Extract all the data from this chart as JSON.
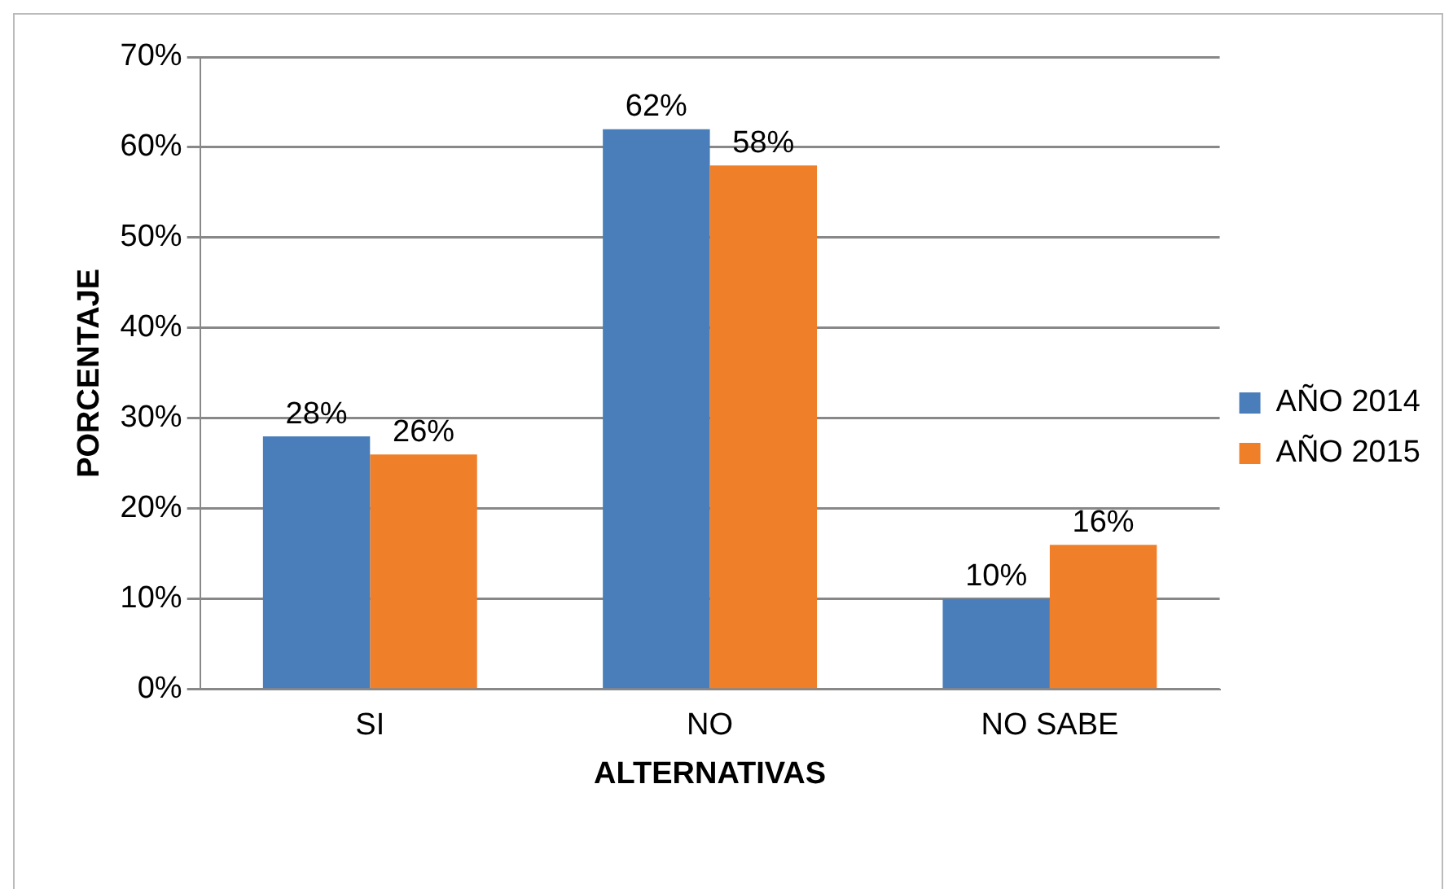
{
  "chart_data": {
    "type": "bar",
    "xlabel": "ALTERNATIVAS",
    "ylabel": "PORCENTAJE",
    "categories": [
      "SI",
      "NO",
      "NO SABE"
    ],
    "series": [
      {
        "name": "AÑO 2014",
        "color": "#4a7ebb",
        "values": [
          28,
          62,
          10
        ],
        "value_labels": [
          "28%",
          "62%",
          "10%"
        ]
      },
      {
        "name": "AÑO 2015",
        "color": "#f07f2a",
        "values": [
          26,
          58,
          16
        ],
        "value_labels": [
          "26%",
          "58%",
          "16%"
        ]
      }
    ],
    "ylim": [
      0,
      70
    ],
    "yticks": [
      {
        "value": 0,
        "label": "0%"
      },
      {
        "value": 10,
        "label": "10%"
      },
      {
        "value": 20,
        "label": "20%"
      },
      {
        "value": 30,
        "label": "30%"
      },
      {
        "value": 40,
        "label": "40%"
      },
      {
        "value": 50,
        "label": "50%"
      },
      {
        "value": 60,
        "label": "60%"
      },
      {
        "value": 70,
        "label": "70%"
      }
    ],
    "grid": "y",
    "legend": "right"
  }
}
